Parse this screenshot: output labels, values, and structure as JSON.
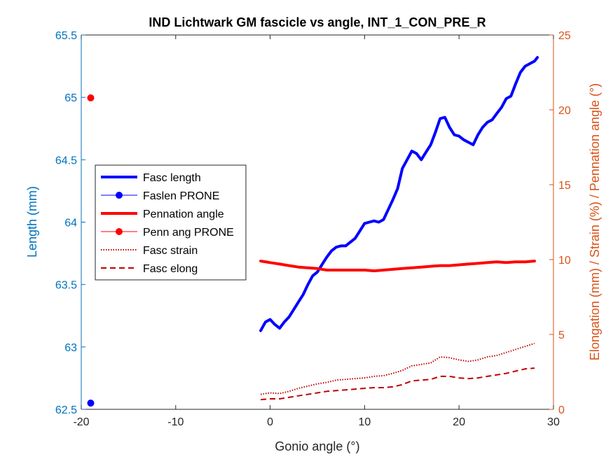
{
  "chart_data": {
    "type": "line",
    "title": "IND Lichtwark GM fascicle vs angle, INT_1_CON_PRE_R",
    "xlabel": "Gonio angle (°)",
    "ylabel_left": "Length (mm)",
    "ylabel_right": "Elongation (mm) / Strain (%) / Pennation angle (°)",
    "xlim": [
      -20,
      30
    ],
    "ylim_left": [
      62.5,
      65.5
    ],
    "ylim_right": [
      0,
      25
    ],
    "x_ticks": [
      "-20",
      "-10",
      "0",
      "10",
      "20",
      "30"
    ],
    "y_ticks_left": [
      "62.5",
      "63",
      "63.5",
      "64",
      "64.5",
      "65",
      "65.5"
    ],
    "y_ticks_right": [
      "0",
      "5",
      "10",
      "15",
      "20",
      "25"
    ],
    "grid": false,
    "legend_position": "left, middle",
    "colors": {
      "left_axis": "#0072BD",
      "right_axis": "#D95319",
      "blue": "#0000FF",
      "red": "#FF0000",
      "dark_red": "#C00000"
    },
    "series": [
      {
        "name": "Fasc length",
        "axis": "left",
        "style": "solid-thick",
        "color": "#0000FF",
        "x": [
          -1,
          -0.5,
          0,
          0.5,
          1,
          1.5,
          2,
          2.5,
          3,
          3.5,
          4,
          4.5,
          5,
          5.5,
          6,
          6.5,
          7,
          7.5,
          8,
          8.5,
          9,
          9.5,
          10,
          10.5,
          11,
          11.5,
          12,
          12.5,
          13,
          13.5,
          14,
          14.5,
          15,
          15.5,
          16,
          16.5,
          17,
          17.5,
          18,
          18.5,
          19,
          19.5,
          20,
          20.5,
          21,
          21.5,
          22,
          22.5,
          23,
          23.5,
          24,
          24.5,
          25,
          25.5,
          26,
          26.5,
          27,
          27.5,
          28,
          28.3
        ],
        "y": [
          63.13,
          63.2,
          63.22,
          63.18,
          63.15,
          63.2,
          63.24,
          63.3,
          63.36,
          63.42,
          63.5,
          63.57,
          63.6,
          63.66,
          63.72,
          63.77,
          63.8,
          63.81,
          63.81,
          63.84,
          63.87,
          63.93,
          63.99,
          64.0,
          64.01,
          64.0,
          64.02,
          64.1,
          64.18,
          64.27,
          64.43,
          64.5,
          64.57,
          64.55,
          64.5,
          64.56,
          64.62,
          64.72,
          64.83,
          64.84,
          64.76,
          64.7,
          64.69,
          64.66,
          64.64,
          64.62,
          64.7,
          64.76,
          64.8,
          64.82,
          64.87,
          64.92,
          64.99,
          65.01,
          65.11,
          65.2,
          65.25,
          65.27,
          65.29,
          65.32
        ]
      },
      {
        "name": "Faslen PRONE",
        "axis": "left",
        "style": "marker",
        "color": "#0000FF",
        "x": [
          -19
        ],
        "y": [
          62.55
        ]
      },
      {
        "name": "Pennation angle",
        "axis": "right",
        "style": "solid-thick",
        "color": "#FF0000",
        "x": [
          -1,
          0,
          1,
          2,
          3,
          4,
          5,
          6,
          7,
          8,
          9,
          10,
          11,
          12,
          13,
          14,
          15,
          16,
          17,
          18,
          19,
          20,
          21,
          22,
          23,
          24,
          25,
          26,
          27,
          28
        ],
        "y": [
          9.9,
          9.8,
          9.7,
          9.6,
          9.5,
          9.45,
          9.4,
          9.3,
          9.3,
          9.3,
          9.3,
          9.3,
          9.25,
          9.3,
          9.35,
          9.4,
          9.45,
          9.5,
          9.55,
          9.6,
          9.6,
          9.65,
          9.7,
          9.75,
          9.8,
          9.85,
          9.8,
          9.85,
          9.85,
          9.9
        ]
      },
      {
        "name": "Penn ang PRONE",
        "axis": "right",
        "style": "marker",
        "color": "#FF0000",
        "x": [
          -19
        ],
        "y": [
          20.8
        ]
      },
      {
        "name": "Fasc strain",
        "axis": "right",
        "style": "dotted",
        "color": "#C00000",
        "x": [
          -1,
          0,
          1,
          2,
          3,
          4,
          5,
          6,
          7,
          8,
          9,
          10,
          11,
          12,
          13,
          14,
          15,
          16,
          17,
          18,
          19,
          20,
          21,
          22,
          23,
          24,
          25,
          26,
          27,
          28
        ],
        "y": [
          1.0,
          1.1,
          1.05,
          1.2,
          1.4,
          1.55,
          1.7,
          1.8,
          1.95,
          2.0,
          2.05,
          2.1,
          2.2,
          2.25,
          2.4,
          2.6,
          2.9,
          3.0,
          3.1,
          3.5,
          3.45,
          3.3,
          3.2,
          3.3,
          3.5,
          3.6,
          3.8,
          4.0,
          4.2,
          4.4
        ]
      },
      {
        "name": "Fasc elong",
        "axis": "right",
        "style": "dashed",
        "color": "#C00000",
        "x": [
          -1,
          0,
          1,
          2,
          3,
          4,
          5,
          6,
          7,
          8,
          9,
          10,
          11,
          12,
          13,
          14,
          15,
          16,
          17,
          18,
          19,
          20,
          21,
          22,
          23,
          24,
          25,
          26,
          27,
          28
        ],
        "y": [
          0.65,
          0.7,
          0.7,
          0.8,
          0.9,
          1.0,
          1.1,
          1.2,
          1.25,
          1.3,
          1.35,
          1.4,
          1.45,
          1.45,
          1.5,
          1.65,
          1.9,
          1.95,
          2.0,
          2.2,
          2.2,
          2.1,
          2.05,
          2.1,
          2.2,
          2.3,
          2.4,
          2.55,
          2.7,
          2.75
        ]
      }
    ]
  }
}
